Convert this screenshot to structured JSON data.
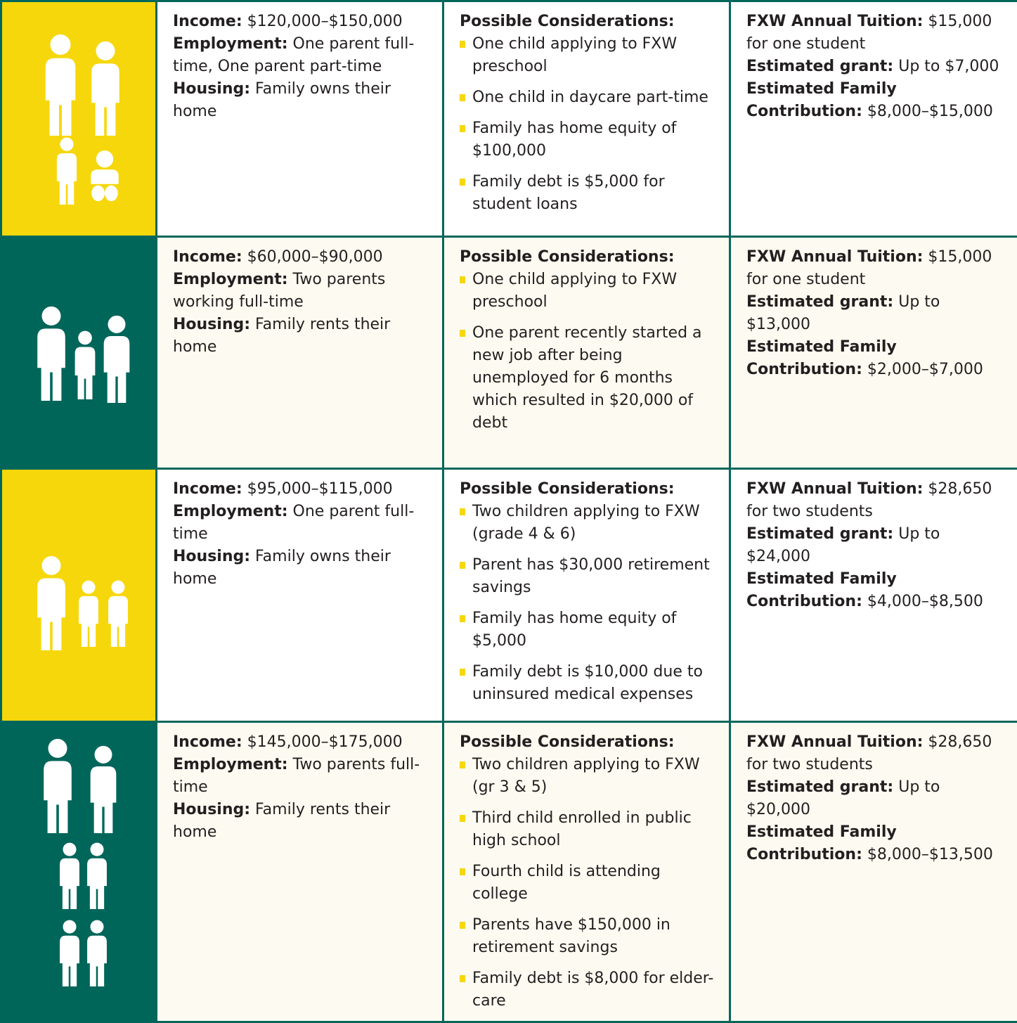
{
  "rows": [
    {
      "color": "#f6d70c",
      "background": "#ffffff",
      "details": [
        {
          "label": "Income:",
          "value": "$120,000–$150,000"
        },
        {
          "label": "Employment:",
          "value": "One parent full-time, One parent part-time"
        },
        {
          "label": "Housing:",
          "value": "Family owns their home"
        }
      ],
      "considerations": {
        "title": "Possible Considerations:",
        "items": [
          "One child applying to FXW preschool",
          "One child in daycare part-time",
          "Family has home equity of $100,000",
          "Family debt is $5,000 for student loans"
        ]
      },
      "costs": [
        {
          "label": "FXW Annual Tuition:",
          "value": "$15,000 for one student"
        },
        {
          "label": "Estimated grant:",
          "value": "Up to $7,000"
        },
        {
          "label": "Estimated Family Contribution:",
          "value": "$8,000–$15,000"
        }
      ]
    },
    {
      "color": "#00665a",
      "background": "#fdfbf1",
      "details": [
        {
          "label": "Income:",
          "value": "$60,000–$90,000"
        },
        {
          "label": "Employment:",
          "value": "Two parents working full-time"
        },
        {
          "label": "Housing:",
          "value": "Family rents their home"
        }
      ],
      "considerations": {
        "title": "Possible Considerations:",
        "items": [
          "One child applying to FXW preschool",
          "One parent recently started a new job after being unemployed for 6 months which resulted in $20,000 of debt"
        ]
      },
      "costs": [
        {
          "label": "FXW Annual Tuition:",
          "value": "$15,000 for one student"
        },
        {
          "label": "Estimated grant:",
          "value": "Up to $13,000"
        },
        {
          "label": "Estimated Family Contribution:",
          "value": "$2,000–$7,000"
        }
      ]
    },
    {
      "color": "#f6d70c",
      "background": "#ffffff",
      "details": [
        {
          "label": "Income:",
          "value": "$95,000–$115,000"
        },
        {
          "label": "Employment:",
          "value": "One parent full-time"
        },
        {
          "label": "Housing:",
          "value": "Family owns their home"
        }
      ],
      "considerations": {
        "title": "Possible Considerations:",
        "items": [
          "Two children applying to FXW (grade 4 & 6)",
          "Parent has $30,000 retirement savings",
          "Family has home equity of $5,000",
          "Family debt is $10,000 due to uninsured medical expenses"
        ]
      },
      "costs": [
        {
          "label": "FXW Annual Tuition:",
          "value": "$28,650 for two students"
        },
        {
          "label": "Estimated grant:",
          "value": "Up to $24,000"
        },
        {
          "label": "Estimated Family Contribution:",
          "value": "$4,000–$8,500"
        }
      ]
    },
    {
      "color": "#00665a",
      "background": "#fdfbf1",
      "details": [
        {
          "label": "Income:",
          "value": "$145,000–$175,000"
        },
        {
          "label": "Employment:",
          "value": "Two parents full-time"
        },
        {
          "label": "Housing:",
          "value": "Family rents their home"
        }
      ],
      "considerations": {
        "title": "Possible Considerations:",
        "items": [
          "Two children applying to FXW (gr 3 & 5)",
          "Third child enrolled in public high school",
          "Fourth child is attending college",
          "Parents have $150,000 in retirement savings",
          "Family debt is $8,000 for elder-care"
        ]
      },
      "costs": [
        {
          "label": "FXW Annual Tuition:",
          "value": "$28,650 for two students"
        },
        {
          "label": "Estimated grant:",
          "value": "Up to $20,000"
        },
        {
          "label": "Estimated Family Contribution:",
          "value": "$8,000–$13,500"
        }
      ]
    }
  ]
}
